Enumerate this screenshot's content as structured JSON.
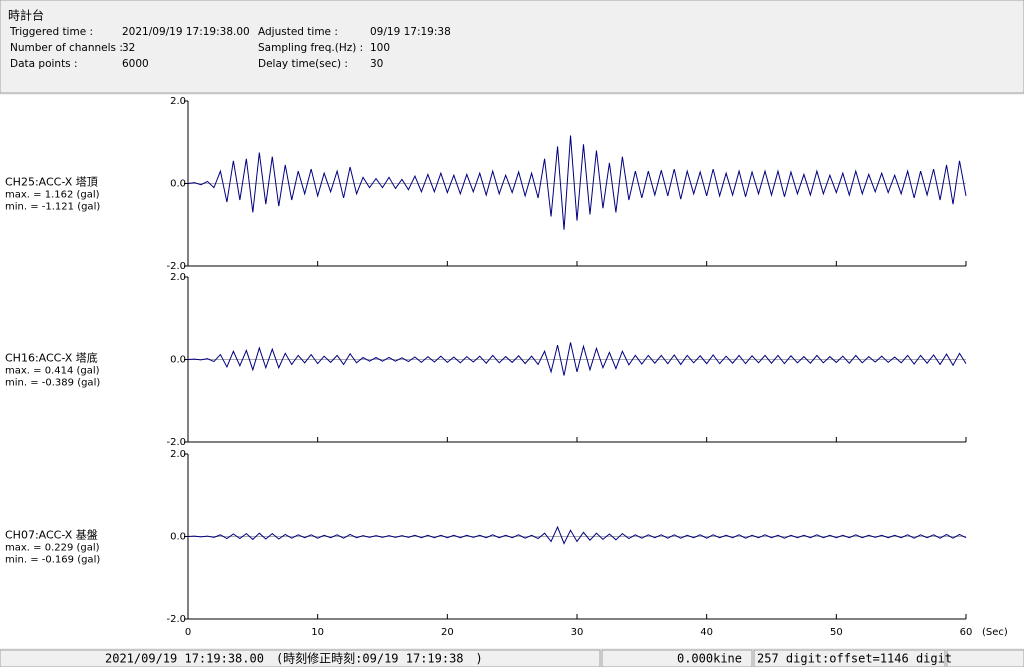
{
  "header": {
    "title": "時計台",
    "fields": [
      [
        "Triggered time :",
        "2021/09/19 17:19:38.00"
      ],
      [
        "Adjusted time :",
        "09/19 17:19:38"
      ],
      [
        "Number of channels :",
        "32"
      ],
      [
        "Sampling freq.(Hz) :",
        "100"
      ],
      [
        "Data points :",
        "6000"
      ],
      [
        "Delay time(sec) :",
        "30"
      ]
    ]
  },
  "chart_data": [
    {
      "type": "line",
      "annotations": [
        "CH25:ACC-X 塔頂",
        "max. = 1.162 (gal)",
        "min. = -1.121 (gal)"
      ],
      "xlim": [
        0,
        60
      ],
      "ylim": [
        -2,
        2
      ],
      "yticks": [
        {
          "value": 2,
          "label": "2.0"
        },
        {
          "value": 0,
          "label": "0.0"
        },
        {
          "value": -2,
          "label": "-2.0"
        }
      ],
      "x": [
        0,
        0.5,
        1,
        1.5,
        2,
        2.5,
        3,
        3.5,
        4,
        4.5,
        5,
        5.5,
        6,
        6.5,
        7,
        7.5,
        8,
        8.5,
        9,
        9.5,
        10,
        10.5,
        11,
        11.5,
        12,
        12.5,
        13,
        13.5,
        14,
        14.5,
        15,
        15.5,
        16,
        16.5,
        17,
        17.5,
        18,
        18.5,
        19,
        19.5,
        20,
        20.5,
        21,
        21.5,
        22,
        22.5,
        23,
        23.5,
        24,
        24.5,
        25,
        25.5,
        26,
        26.5,
        27,
        27.5,
        28,
        28.5,
        29,
        29.5,
        30,
        30.5,
        31,
        31.5,
        32,
        32.5,
        33,
        33.5,
        34,
        34.5,
        35,
        35.5,
        36,
        36.5,
        37,
        37.5,
        38,
        38.5,
        39,
        39.5,
        40,
        40.5,
        41,
        41.5,
        42,
        42.5,
        43,
        43.5,
        44,
        44.5,
        45,
        45.5,
        46,
        46.5,
        47,
        47.5,
        48,
        48.5,
        49,
        49.5,
        50,
        50.5,
        51,
        51.5,
        52,
        52.5,
        53,
        53.5,
        54,
        54.5,
        55,
        55.5,
        56,
        56.5,
        57,
        57.5,
        58,
        58.5,
        59,
        59.5,
        60
      ],
      "series": [
        {
          "color": "#000080",
          "values": [
            0,
            0.02,
            -0.03,
            0.05,
            -0.1,
            0.3,
            -0.45,
            0.55,
            -0.4,
            0.6,
            -0.7,
            0.75,
            -0.5,
            0.65,
            -0.55,
            0.45,
            -0.4,
            0.3,
            -0.25,
            0.35,
            -0.3,
            0.25,
            -0.2,
            0.3,
            -0.35,
            0.4,
            -0.25,
            0.15,
            -0.1,
            0.12,
            -0.1,
            0.15,
            -0.12,
            0.1,
            -0.15,
            0.18,
            -0.2,
            0.22,
            -0.2,
            0.25,
            -0.22,
            0.2,
            -0.25,
            0.22,
            -0.2,
            0.25,
            -0.28,
            0.3,
            -0.25,
            0.2,
            -0.22,
            0.28,
            -0.3,
            0.25,
            -0.35,
            0.6,
            -0.8,
            0.9,
            -1.121,
            1.162,
            -0.9,
            0.95,
            -0.75,
            0.8,
            -0.6,
            0.5,
            -0.7,
            0.65,
            -0.4,
            0.3,
            -0.35,
            0.3,
            -0.28,
            0.32,
            -0.3,
            0.35,
            -0.38,
            0.3,
            -0.25,
            0.28,
            -0.3,
            0.35,
            -0.3,
            0.25,
            -0.28,
            0.3,
            -0.32,
            0.28,
            -0.25,
            0.3,
            -0.28,
            0.3,
            -0.32,
            0.28,
            -0.25,
            0.22,
            -0.28,
            0.3,
            -0.25,
            0.2,
            -0.22,
            0.25,
            -0.28,
            0.3,
            -0.25,
            0.22,
            -0.2,
            0.25,
            -0.22,
            0.2,
            -0.25,
            0.3,
            -0.35,
            0.3,
            -0.28,
            0.35,
            -0.4,
            0.45,
            -0.5,
            0.55,
            -0.3
          ]
        }
      ]
    },
    {
      "type": "line",
      "annotations": [
        "CH16:ACC-X 塔底",
        "max. = 0.414 (gal)",
        "min. = -0.389 (gal)"
      ],
      "xlim": [
        0,
        60
      ],
      "ylim": [
        -2,
        2
      ],
      "yticks": [
        {
          "value": 2,
          "label": "2.0"
        },
        {
          "value": 0,
          "label": "0.0"
        },
        {
          "value": -2,
          "label": "-2.0"
        }
      ],
      "x": [
        0,
        0.5,
        1,
        1.5,
        2,
        2.5,
        3,
        3.5,
        4,
        4.5,
        5,
        5.5,
        6,
        6.5,
        7,
        7.5,
        8,
        8.5,
        9,
        9.5,
        10,
        10.5,
        11,
        11.5,
        12,
        12.5,
        13,
        13.5,
        14,
        14.5,
        15,
        15.5,
        16,
        16.5,
        17,
        17.5,
        18,
        18.5,
        19,
        19.5,
        20,
        20.5,
        21,
        21.5,
        22,
        22.5,
        23,
        23.5,
        24,
        24.5,
        25,
        25.5,
        26,
        26.5,
        27,
        27.5,
        28,
        28.5,
        29,
        29.5,
        30,
        30.5,
        31,
        31.5,
        32,
        32.5,
        33,
        33.5,
        34,
        34.5,
        35,
        35.5,
        36,
        36.5,
        37,
        37.5,
        38,
        38.5,
        39,
        39.5,
        40,
        40.5,
        41,
        41.5,
        42,
        42.5,
        43,
        43.5,
        44,
        44.5,
        45,
        45.5,
        46,
        46.5,
        47,
        47.5,
        48,
        48.5,
        49,
        49.5,
        50,
        50.5,
        51,
        51.5,
        52,
        52.5,
        53,
        53.5,
        54,
        54.5,
        55,
        55.5,
        56,
        56.5,
        57,
        57.5,
        58,
        58.5,
        59,
        59.5,
        60
      ],
      "series": [
        {
          "color": "#000080",
          "values": [
            0,
            0.01,
            -0.01,
            0.02,
            -0.05,
            0.12,
            -0.18,
            0.2,
            -0.15,
            0.22,
            -0.25,
            0.28,
            -0.2,
            0.25,
            -0.2,
            0.15,
            -0.12,
            0.1,
            -0.08,
            0.12,
            -0.1,
            0.08,
            -0.07,
            0.1,
            -0.12,
            0.14,
            -0.08,
            0.05,
            -0.04,
            0.05,
            -0.04,
            0.05,
            -0.04,
            0.04,
            -0.05,
            0.06,
            -0.07,
            0.07,
            -0.06,
            0.08,
            -0.07,
            0.06,
            -0.08,
            0.07,
            -0.06,
            0.08,
            -0.09,
            0.1,
            -0.08,
            0.07,
            -0.07,
            0.09,
            -0.1,
            0.08,
            -0.12,
            0.2,
            -0.3,
            0.35,
            -0.389,
            0.414,
            -0.3,
            0.32,
            -0.25,
            0.27,
            -0.2,
            0.17,
            -0.22,
            0.2,
            -0.13,
            0.1,
            -0.11,
            0.1,
            -0.09,
            0.1,
            -0.1,
            0.11,
            -0.12,
            0.1,
            -0.08,
            0.09,
            -0.1,
            0.11,
            -0.1,
            0.08,
            -0.09,
            0.1,
            -0.1,
            0.09,
            -0.08,
            0.1,
            -0.09,
            0.1,
            -0.1,
            0.09,
            -0.08,
            0.07,
            -0.09,
            0.1,
            -0.08,
            0.07,
            -0.07,
            0.08,
            -0.09,
            0.1,
            -0.08,
            0.07,
            -0.06,
            0.08,
            -0.07,
            0.06,
            -0.08,
            0.1,
            -0.11,
            0.1,
            -0.09,
            0.11,
            -0.12,
            0.13,
            -0.14,
            0.15,
            -0.1
          ]
        }
      ]
    },
    {
      "type": "line",
      "annotations": [
        "CH07:ACC-X 基盤",
        "max. = 0.229 (gal)",
        "min. = -0.169 (gal)"
      ],
      "xlim": [
        0,
        60
      ],
      "ylim": [
        -2,
        2
      ],
      "xlabel": "(Sec)",
      "xticks": [
        0,
        10,
        20,
        30,
        40,
        50,
        60
      ],
      "yticks": [
        {
          "value": 2,
          "label": "2.0"
        },
        {
          "value": 0,
          "label": "0.0"
        },
        {
          "value": -2,
          "label": "-2.0"
        }
      ],
      "x": [
        0,
        0.5,
        1,
        1.5,
        2,
        2.5,
        3,
        3.5,
        4,
        4.5,
        5,
        5.5,
        6,
        6.5,
        7,
        7.5,
        8,
        8.5,
        9,
        9.5,
        10,
        10.5,
        11,
        11.5,
        12,
        12.5,
        13,
        13.5,
        14,
        14.5,
        15,
        15.5,
        16,
        16.5,
        17,
        17.5,
        18,
        18.5,
        19,
        19.5,
        20,
        20.5,
        21,
        21.5,
        22,
        22.5,
        23,
        23.5,
        24,
        24.5,
        25,
        25.5,
        26,
        26.5,
        27,
        27.5,
        28,
        28.5,
        29,
        29.5,
        30,
        30.5,
        31,
        31.5,
        32,
        32.5,
        33,
        33.5,
        34,
        34.5,
        35,
        35.5,
        36,
        36.5,
        37,
        37.5,
        38,
        38.5,
        39,
        39.5,
        40,
        40.5,
        41,
        41.5,
        42,
        42.5,
        43,
        43.5,
        44,
        44.5,
        45,
        45.5,
        46,
        46.5,
        47,
        47.5,
        48,
        48.5,
        49,
        49.5,
        50,
        50.5,
        51,
        51.5,
        52,
        52.5,
        53,
        53.5,
        54,
        54.5,
        55,
        55.5,
        56,
        56.5,
        57,
        57.5,
        58,
        58.5,
        59,
        59.5,
        60
      ],
      "series": [
        {
          "color": "#000080",
          "values": [
            0,
            0.01,
            -0.01,
            0.01,
            -0.02,
            0.04,
            -0.05,
            0.06,
            -0.05,
            0.07,
            -0.07,
            0.08,
            -0.06,
            0.07,
            -0.06,
            0.05,
            -0.04,
            0.04,
            -0.03,
            0.04,
            -0.04,
            0.03,
            -0.03,
            0.04,
            -0.04,
            0.05,
            -0.03,
            0.02,
            -0.02,
            0.02,
            -0.02,
            0.02,
            -0.02,
            0.02,
            -0.02,
            0.03,
            -0.03,
            0.03,
            -0.03,
            0.03,
            -0.03,
            0.03,
            -0.03,
            0.03,
            -0.02,
            0.03,
            -0.03,
            0.04,
            -0.03,
            0.03,
            -0.03,
            0.04,
            -0.04,
            0.03,
            -0.05,
            0.08,
            -0.12,
            0.229,
            -0.169,
            0.15,
            -0.12,
            0.1,
            -0.09,
            0.08,
            -0.07,
            0.06,
            -0.08,
            0.07,
            -0.05,
            0.04,
            -0.04,
            0.04,
            -0.03,
            0.04,
            -0.04,
            0.04,
            -0.04,
            0.03,
            -0.03,
            0.04,
            -0.04,
            0.04,
            -0.03,
            0.03,
            -0.03,
            0.04,
            -0.04,
            0.03,
            -0.03,
            0.04,
            -0.03,
            0.03,
            -0.04,
            0.03,
            -0.03,
            0.03,
            -0.03,
            0.04,
            -0.03,
            0.03,
            -0.03,
            0.03,
            -0.03,
            0.04,
            -0.03,
            0.03,
            -0.02,
            0.03,
            -0.03,
            0.03,
            -0.03,
            0.04,
            -0.04,
            0.04,
            -0.03,
            0.04,
            -0.04,
            0.05,
            -0.04,
            0.05,
            -0.03
          ]
        }
      ]
    }
  ],
  "status_bar": [
    "2021/09/19 17:19:38.00　(時刻修正時刻:09/19 17:19:38　)",
    "0.000kine",
    "257 digit:offset=1146 digit"
  ]
}
